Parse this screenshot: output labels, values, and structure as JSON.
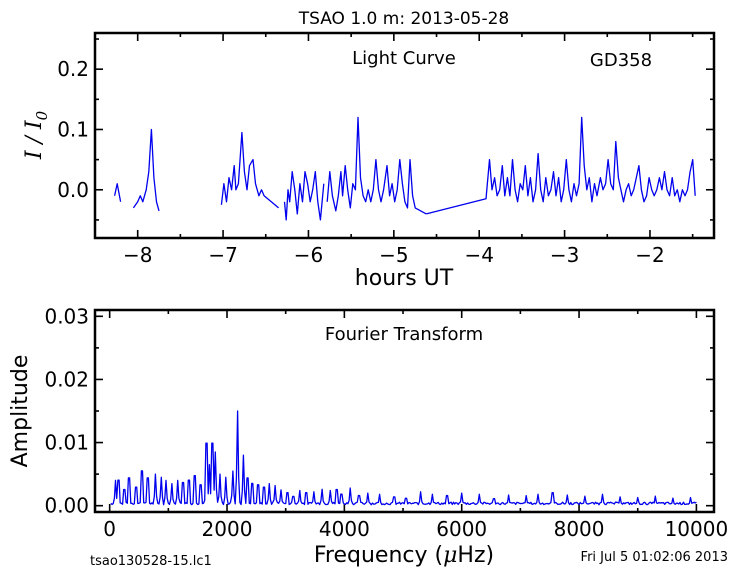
{
  "header": {
    "title": "TSAO 1.0 m:  2013-05-28"
  },
  "footer": {
    "left": "tsao130528-15.lc1",
    "right": "Fri Jul  5 01:02:06 2013"
  },
  "chart_data": [
    {
      "type": "line",
      "title": "Light Curve",
      "annotation": "GD358",
      "xlabel": "hours UT",
      "ylabel_base": "I",
      "ylabel_sep": " / ",
      "ylabel_sub": "0",
      "xlim": [
        -8.5,
        -1.25
      ],
      "ylim": [
        -0.08,
        0.26
      ],
      "xticks": [
        -8,
        -7,
        -6,
        -5,
        -4,
        -3,
        -2
      ],
      "xtick_labels": [
        "−8",
        "−7",
        "−6",
        "−5",
        "−4",
        "−3",
        "−2"
      ],
      "yticks": [
        0.0,
        0.1,
        0.2
      ],
      "ytick_labels": [
        "0.0",
        "0.1",
        "0.2"
      ],
      "color": "#0000ee",
      "segments": [
        [
          [
            -8.27,
            -0.01
          ],
          [
            -8.24,
            0.01
          ],
          [
            -8.2,
            -0.02
          ]
        ],
        [
          [
            -8.05,
            -0.03
          ],
          [
            -8.0,
            -0.02
          ],
          [
            -7.97,
            -0.01
          ],
          [
            -7.94,
            -0.02
          ],
          [
            -7.9,
            0.0
          ],
          [
            -7.87,
            0.03
          ],
          [
            -7.84,
            0.1
          ],
          [
            -7.81,
            0.02
          ],
          [
            -7.78,
            -0.02
          ],
          [
            -7.75,
            -0.035
          ]
        ],
        [
          [
            -7.02,
            -0.025
          ],
          [
            -6.99,
            0.01
          ],
          [
            -6.96,
            -0.02
          ],
          [
            -6.93,
            0.02
          ],
          [
            -6.9,
            0.0
          ],
          [
            -6.87,
            0.04
          ],
          [
            -6.85,
            0.0
          ],
          [
            -6.82,
            0.01
          ],
          [
            -6.78,
            0.095
          ],
          [
            -6.75,
            0.03
          ],
          [
            -6.72,
            0.0
          ],
          [
            -6.69,
            0.04
          ],
          [
            -6.65,
            0.05
          ],
          [
            -6.62,
            0.01
          ],
          [
            -6.58,
            -0.01
          ],
          [
            -6.55,
            0.0
          ],
          [
            -6.52,
            -0.01
          ],
          [
            -6.35,
            -0.03
          ]
        ],
        [
          [
            -6.28,
            -0.02
          ],
          [
            -6.26,
            -0.05
          ],
          [
            -6.24,
            0.0
          ],
          [
            -6.22,
            -0.02
          ],
          [
            -6.19,
            0.03
          ],
          [
            -6.16,
            0.0
          ],
          [
            -6.13,
            -0.04
          ],
          [
            -6.1,
            0.01
          ],
          [
            -6.07,
            -0.02
          ],
          [
            -6.04,
            0.03
          ],
          [
            -6.01,
            0.01
          ],
          [
            -5.98,
            -0.02
          ],
          [
            -5.95,
            0.0
          ],
          [
            -5.92,
            0.03
          ],
          [
            -5.89,
            -0.02
          ],
          [
            -5.86,
            -0.05
          ],
          [
            -5.82,
            0.01
          ]
        ],
        [
          [
            -5.78,
            -0.02
          ],
          [
            -5.75,
            0.03
          ],
          [
            -5.72,
            -0.01
          ],
          [
            -5.68,
            -0.035
          ],
          [
            -5.65,
            -0.01
          ],
          [
            -5.62,
            0.03
          ],
          [
            -5.6,
            -0.01
          ],
          [
            -5.57,
            0.04
          ],
          [
            -5.54,
            0.0
          ],
          [
            -5.51,
            -0.03
          ],
          [
            -5.48,
            0.01
          ],
          [
            -5.45,
            0.0
          ],
          [
            -5.42,
            0.12
          ],
          [
            -5.39,
            0.02
          ],
          [
            -5.36,
            -0.01
          ],
          [
            -5.33,
            -0.02
          ],
          [
            -5.3,
            0.0
          ],
          [
            -5.27,
            -0.02
          ],
          [
            -5.24,
            0.0
          ],
          [
            -5.21,
            0.05
          ],
          [
            -5.18,
            0.0
          ],
          [
            -5.15,
            -0.02
          ],
          [
            -5.12,
            0.0
          ],
          [
            -5.08,
            0.04
          ],
          [
            -5.05,
            -0.01
          ],
          [
            -5.02,
            0.01
          ],
          [
            -4.99,
            -0.02
          ],
          [
            -4.96,
            0.0
          ],
          [
            -4.93,
            0.05
          ],
          [
            -4.9,
            0.01
          ],
          [
            -4.87,
            -0.02
          ],
          [
            -4.84,
            -0.03
          ],
          [
            -4.81,
            0.05
          ],
          [
            -4.78,
            -0.01
          ],
          [
            -4.75,
            -0.03
          ],
          [
            -4.62,
            -0.04
          ]
        ],
        [
          [
            -4.62,
            -0.04
          ],
          [
            -3.92,
            -0.015
          ],
          [
            -3.88,
            0.05
          ],
          [
            -3.85,
            0.0
          ],
          [
            -3.82,
            0.02
          ],
          [
            -3.79,
            -0.01
          ],
          [
            -3.76,
            0.0
          ],
          [
            -3.73,
            0.04
          ],
          [
            -3.7,
            -0.01
          ],
          [
            -3.67,
            0.02
          ],
          [
            -3.64,
            -0.01
          ],
          [
            -3.61,
            0.05
          ],
          [
            -3.58,
            0.0
          ],
          [
            -3.55,
            -0.02
          ],
          [
            -3.52,
            0.01
          ],
          [
            -3.49,
            0.0
          ],
          [
            -3.46,
            0.04
          ],
          [
            -3.43,
            -0.01
          ],
          [
            -3.4,
            0.02
          ],
          [
            -3.37,
            -0.02
          ],
          [
            -3.34,
            0.0
          ],
          [
            -3.31,
            0.06
          ],
          [
            -3.28,
            0.0
          ],
          [
            -3.25,
            -0.02
          ],
          [
            -3.22,
            0.02
          ],
          [
            -3.19,
            -0.01
          ],
          [
            -3.16,
            0.0
          ],
          [
            -3.13,
            0.03
          ],
          [
            -3.1,
            -0.01
          ],
          [
            -3.07,
            0.02
          ],
          [
            -3.04,
            -0.02
          ],
          [
            -3.01,
            0.0
          ],
          [
            -2.98,
            0.05
          ],
          [
            -2.95,
            0.0
          ],
          [
            -2.92,
            -0.02
          ],
          [
            -2.89,
            0.01
          ],
          [
            -2.86,
            -0.01
          ],
          [
            -2.83,
            0.01
          ],
          [
            -2.8,
            0.12
          ],
          [
            -2.77,
            0.04
          ],
          [
            -2.74,
            0.0
          ],
          [
            -2.71,
            0.02
          ],
          [
            -2.68,
            -0.02
          ],
          [
            -2.65,
            0.01
          ],
          [
            -2.62,
            -0.01
          ],
          [
            -2.58,
            0.02
          ],
          [
            -2.55,
            0.0
          ],
          [
            -2.52,
            0.01
          ],
          [
            -2.49,
            0.05
          ],
          [
            -2.46,
            0.01
          ],
          [
            -2.43,
            0.0
          ],
          [
            -2.4,
            0.08
          ],
          [
            -2.37,
            0.02
          ],
          [
            -2.34,
            0.0
          ],
          [
            -2.31,
            -0.02
          ],
          [
            -2.28,
            0.0
          ],
          [
            -2.25,
            0.01
          ],
          [
            -2.22,
            -0.01
          ],
          [
            -2.19,
            0.0
          ],
          [
            -2.16,
            0.02
          ],
          [
            -2.13,
            0.04
          ],
          [
            -2.1,
            0.0
          ],
          [
            -2.07,
            -0.02
          ],
          [
            -2.04,
            -0.01
          ],
          [
            -2.01,
            0.02
          ],
          [
            -1.98,
            0.0
          ],
          [
            -1.95,
            -0.01
          ],
          [
            -1.92,
            0.0
          ],
          [
            -1.89,
            0.02
          ],
          [
            -1.86,
            0.0
          ],
          [
            -1.83,
            0.03
          ],
          [
            -1.8,
            0.0
          ],
          [
            -1.77,
            -0.01
          ],
          [
            -1.74,
            0.02
          ],
          [
            -1.71,
            -0.01
          ],
          [
            -1.68,
            0.0
          ],
          [
            -1.65,
            -0.02
          ],
          [
            -1.62,
            0.0
          ],
          [
            -1.59,
            -0.01
          ],
          [
            -1.56,
            0.0
          ],
          [
            -1.53,
            0.03
          ],
          [
            -1.5,
            0.05
          ],
          [
            -1.47,
            -0.01
          ]
        ]
      ]
    },
    {
      "type": "line",
      "title": "Fourier Transform",
      "xlabel_pre": "Frequency (",
      "xlabel_mu": "μ",
      "xlabel_post": "Hz)",
      "ylabel": "Amplitude",
      "xlim": [
        -250,
        10300
      ],
      "ylim": [
        -0.001,
        0.031
      ],
      "xticks": [
        0,
        2000,
        4000,
        6000,
        8000,
        10000
      ],
      "xtick_labels": [
        "0",
        "2000",
        "4000",
        "6000",
        "8000",
        "10000"
      ],
      "yticks": [
        0.0,
        0.01,
        0.02,
        0.03
      ],
      "ytick_labels": [
        "0.00",
        "0.01",
        "0.02",
        "0.03"
      ],
      "color": "#0000ee",
      "peaks": [
        [
          100,
          0.004
        ],
        [
          150,
          0.0055
        ],
        [
          250,
          0.0035
        ],
        [
          330,
          0.006
        ],
        [
          450,
          0.004
        ],
        [
          550,
          0.0075
        ],
        [
          650,
          0.006
        ],
        [
          780,
          0.005
        ],
        [
          880,
          0.0045
        ],
        [
          960,
          0.004
        ],
        [
          1060,
          0.0035
        ],
        [
          1160,
          0.004
        ],
        [
          1250,
          0.005
        ],
        [
          1350,
          0.0055
        ],
        [
          1450,
          0.0065
        ],
        [
          1550,
          0.0045
        ],
        [
          1650,
          0.0135
        ],
        [
          1700,
          0.0065
        ],
        [
          1750,
          0.0135
        ],
        [
          1800,
          0.0085
        ],
        [
          1880,
          0.005
        ],
        [
          1980,
          0.0045
        ],
        [
          2100,
          0.0055
        ],
        [
          2180,
          0.015
        ],
        [
          2280,
          0.008
        ],
        [
          2350,
          0.006
        ],
        [
          2430,
          0.0048
        ],
        [
          2530,
          0.0045
        ],
        [
          2630,
          0.004
        ],
        [
          2720,
          0.0035
        ],
        [
          2820,
          0.0032
        ],
        [
          2920,
          0.0025
        ],
        [
          3030,
          0.0028
        ],
        [
          3130,
          0.002
        ],
        [
          3240,
          0.0024
        ],
        [
          3350,
          0.0028
        ],
        [
          3480,
          0.0022
        ],
        [
          3620,
          0.0026
        ],
        [
          3760,
          0.0024
        ],
        [
          3870,
          0.0035
        ],
        [
          3950,
          0.0025
        ],
        [
          4100,
          0.0028
        ],
        [
          4250,
          0.0022
        ],
        [
          4400,
          0.002
        ],
        [
          4600,
          0.0018
        ],
        [
          4850,
          0.0019
        ],
        [
          5050,
          0.0016
        ],
        [
          5300,
          0.0022
        ],
        [
          5500,
          0.0018
        ],
        [
          5750,
          0.0022
        ],
        [
          6000,
          0.002
        ],
        [
          6300,
          0.0018
        ],
        [
          6550,
          0.0015
        ],
        [
          6800,
          0.0017
        ],
        [
          7100,
          0.0016
        ],
        [
          7300,
          0.0018
        ],
        [
          7550,
          0.0028
        ],
        [
          7800,
          0.0017
        ],
        [
          8100,
          0.0015
        ],
        [
          8400,
          0.0018
        ],
        [
          8700,
          0.0014
        ],
        [
          9000,
          0.0013
        ],
        [
          9300,
          0.0015
        ],
        [
          9600,
          0.0012
        ],
        [
          9900,
          0.0013
        ]
      ],
      "noise_floor": 0.0004
    }
  ]
}
